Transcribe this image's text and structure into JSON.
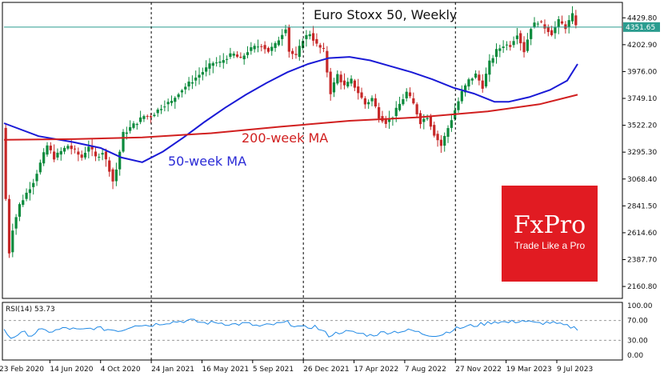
{
  "chart_data": {
    "type": "candlestick",
    "title": "Euro Stoxx 50, Weekly",
    "ylim": [
      2060,
      4560
    ],
    "y_ticks": [
      "4429.80",
      "4202.90",
      "3976.00",
      "3749.10",
      "3522.20",
      "3295.30",
      "3068.40",
      "2841.50",
      "2614.60",
      "2387.70",
      "2160.80"
    ],
    "x_tick_labels": [
      "23 Feb 2020",
      "14 Jun 2020",
      "4 Oct 2020",
      "24 Jan 2021",
      "16 May 2021",
      "5 Sep 2021",
      "26 Dec 2021",
      "17 Apr 2022",
      "7 Aug 2022",
      "27 Nov 2022",
      "19 Mar 2023",
      "9 Jul 2023"
    ],
    "vertical_markers": [
      "24 Jan 2021",
      "26 Dec 2021",
      "27 Nov 2022"
    ],
    "current_price": "4351.65",
    "current_price_value": 4351.65,
    "price_points": [
      [
        0,
        3500
      ],
      [
        1,
        2900
      ],
      [
        2,
        2450
      ],
      [
        3,
        2650
      ],
      [
        5,
        2850
      ],
      [
        7,
        2950
      ],
      [
        9,
        3050
      ],
      [
        11,
        3200
      ],
      [
        13,
        3350
      ],
      [
        15,
        3250
      ],
      [
        17,
        3300
      ],
      [
        19,
        3350
      ],
      [
        21,
        3300
      ],
      [
        23,
        3250
      ],
      [
        25,
        3350
      ],
      [
        27,
        3250
      ],
      [
        29,
        3300
      ],
      [
        31,
        3150
      ],
      [
        32,
        3050
      ],
      [
        33,
        3150
      ],
      [
        35,
        3450
      ],
      [
        37,
        3500
      ],
      [
        39,
        3550
      ],
      [
        41,
        3600
      ],
      [
        43,
        3600
      ],
      [
        45,
        3650
      ],
      [
        47,
        3700
      ],
      [
        49,
        3720
      ],
      [
        51,
        3800
      ],
      [
        53,
        3850
      ],
      [
        55,
        3900
      ],
      [
        57,
        3950
      ],
      [
        59,
        4000
      ],
      [
        61,
        4050
      ],
      [
        63,
        4050
      ],
      [
        65,
        4100
      ],
      [
        67,
        4120
      ],
      [
        69,
        4080
      ],
      [
        71,
        4150
      ],
      [
        73,
        4180
      ],
      [
        75,
        4200
      ],
      [
        77,
        4150
      ],
      [
        79,
        4200
      ],
      [
        81,
        4300
      ],
      [
        82,
        4350
      ],
      [
        83,
        4150
      ],
      [
        85,
        4100
      ],
      [
        87,
        4250
      ],
      [
        89,
        4300
      ],
      [
        91,
        4200
      ],
      [
        93,
        4150
      ],
      [
        95,
        3800
      ],
      [
        97,
        3950
      ],
      [
        99,
        3850
      ],
      [
        101,
        3900
      ],
      [
        103,
        3800
      ],
      [
        105,
        3700
      ],
      [
        107,
        3750
      ],
      [
        109,
        3600
      ],
      [
        111,
        3550
      ],
      [
        113,
        3600
      ],
      [
        115,
        3700
      ],
      [
        117,
        3800
      ],
      [
        119,
        3700
      ],
      [
        121,
        3550
      ],
      [
        123,
        3600
      ],
      [
        125,
        3450
      ],
      [
        127,
        3350
      ],
      [
        129,
        3500
      ],
      [
        131,
        3650
      ],
      [
        133,
        3800
      ],
      [
        135,
        3900
      ],
      [
        137,
        3950
      ],
      [
        139,
        3850
      ],
      [
        141,
        4050
      ],
      [
        143,
        4150
      ],
      [
        145,
        4200
      ],
      [
        147,
        4200
      ],
      [
        149,
        4300
      ],
      [
        151,
        4150
      ],
      [
        153,
        4350
      ],
      [
        155,
        4400
      ],
      [
        157,
        4350
      ],
      [
        159,
        4300
      ],
      [
        161,
        4400
      ],
      [
        163,
        4350
      ],
      [
        165,
        4450
      ],
      [
        166,
        4380
      ]
    ],
    "series": [
      {
        "name": "50-week MA",
        "color": "#1a1ad6",
        "points": [
          [
            0,
            3540
          ],
          [
            10,
            3430
          ],
          [
            20,
            3380
          ],
          [
            28,
            3330
          ],
          [
            34,
            3250
          ],
          [
            40,
            3210
          ],
          [
            46,
            3300
          ],
          [
            52,
            3420
          ],
          [
            58,
            3550
          ],
          [
            64,
            3670
          ],
          [
            70,
            3780
          ],
          [
            76,
            3880
          ],
          [
            82,
            3970
          ],
          [
            88,
            4040
          ],
          [
            94,
            4090
          ],
          [
            100,
            4100
          ],
          [
            106,
            4070
          ],
          [
            112,
            4020
          ],
          [
            118,
            3970
          ],
          [
            124,
            3910
          ],
          [
            130,
            3840
          ],
          [
            136,
            3790
          ],
          [
            142,
            3720
          ],
          [
            146,
            3720
          ],
          [
            152,
            3760
          ],
          [
            158,
            3820
          ],
          [
            163,
            3900
          ],
          [
            166,
            4040
          ]
        ]
      },
      {
        "name": "200-week MA",
        "color": "#d11f1f",
        "points": [
          [
            0,
            3400
          ],
          [
            20,
            3405
          ],
          [
            40,
            3420
          ],
          [
            60,
            3455
          ],
          [
            80,
            3510
          ],
          [
            100,
            3560
          ],
          [
            120,
            3590
          ],
          [
            140,
            3640
          ],
          [
            155,
            3700
          ],
          [
            166,
            3780
          ]
        ]
      }
    ],
    "rsi": {
      "label": "RSI(14) 53.73",
      "ylim": [
        0,
        100
      ],
      "ticks": [
        "100.00",
        "70.00",
        "30.00",
        "0.00"
      ],
      "levels": [
        70,
        30
      ],
      "values": [
        [
          0,
          50
        ],
        [
          2,
          35
        ],
        [
          4,
          42
        ],
        [
          6,
          45
        ],
        [
          8,
          40
        ],
        [
          10,
          50
        ],
        [
          14,
          48
        ],
        [
          18,
          55
        ],
        [
          22,
          50
        ],
        [
          26,
          55
        ],
        [
          30,
          52
        ],
        [
          34,
          50
        ],
        [
          38,
          62
        ],
        [
          42,
          60
        ],
        [
          46,
          65
        ],
        [
          50,
          68
        ],
        [
          54,
          70
        ],
        [
          58,
          65
        ],
        [
          62,
          66
        ],
        [
          66,
          62
        ],
        [
          70,
          64
        ],
        [
          74,
          58
        ],
        [
          78,
          62
        ],
        [
          82,
          66
        ],
        [
          86,
          55
        ],
        [
          90,
          58
        ],
        [
          94,
          40
        ],
        [
          98,
          48
        ],
        [
          102,
          45
        ],
        [
          106,
          40
        ],
        [
          110,
          46
        ],
        [
          114,
          48
        ],
        [
          118,
          50
        ],
        [
          122,
          42
        ],
        [
          126,
          40
        ],
        [
          130,
          52
        ],
        [
          134,
          58
        ],
        [
          138,
          62
        ],
        [
          142,
          68
        ],
        [
          146,
          66
        ],
        [
          150,
          70
        ],
        [
          154,
          64
        ],
        [
          158,
          66
        ],
        [
          162,
          60
        ],
        [
          166,
          54
        ]
      ]
    }
  },
  "annotations": {
    "ma50_label": "50-week MA",
    "ma200_label": "200-week MA"
  },
  "logo": {
    "brand": "FxPro",
    "tagline": "Trade Like a Pro",
    "color": "#e11b22"
  }
}
